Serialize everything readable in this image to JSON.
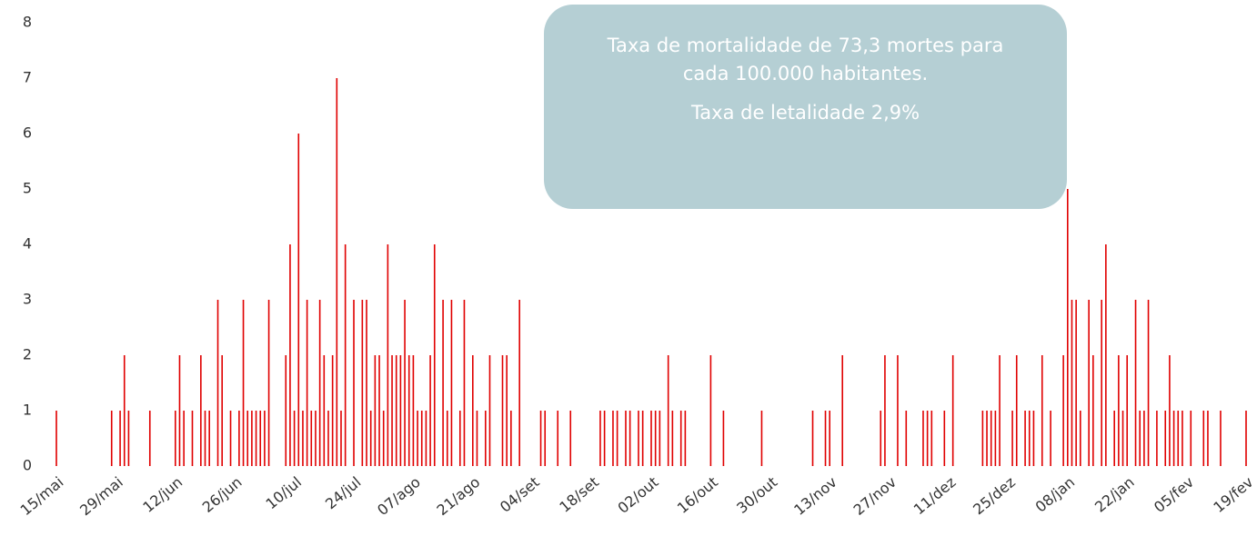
{
  "chart_data": {
    "type": "bar",
    "color": "#e00000",
    "ylim": [
      0,
      8
    ],
    "yticks": [
      0,
      1,
      2,
      3,
      4,
      5,
      6,
      7,
      8
    ],
    "grid": false,
    "annotations": [
      "Taxa de mortalidade de 73,3 mortes para cada 100.000 habitantes.",
      "Taxa de letalidade 2,9%"
    ],
    "categories": [
      "15/mai",
      null,
      null,
      null,
      null,
      null,
      null,
      null,
      null,
      null,
      null,
      null,
      null,
      null,
      "29/mai",
      null,
      null,
      null,
      null,
      null,
      null,
      null,
      null,
      null,
      null,
      null,
      null,
      null,
      "12/jun",
      null,
      null,
      null,
      null,
      null,
      null,
      null,
      null,
      null,
      null,
      null,
      null,
      null,
      "26/jun",
      null,
      null,
      null,
      null,
      null,
      null,
      null,
      null,
      null,
      null,
      null,
      null,
      null,
      "10/jul",
      null,
      null,
      null,
      null,
      null,
      null,
      null,
      null,
      null,
      null,
      null,
      null,
      null,
      "24/jul",
      null,
      null,
      null,
      null,
      null,
      null,
      null,
      null,
      null,
      null,
      null,
      null,
      null,
      "07/ago",
      null,
      null,
      null,
      null,
      null,
      null,
      null,
      null,
      null,
      null,
      null,
      null,
      null,
      "21/ago",
      null,
      null,
      null,
      null,
      null,
      null,
      null,
      null,
      null,
      null,
      null,
      null,
      null,
      "04/set",
      null,
      null,
      null,
      null,
      null,
      null,
      null,
      null,
      null,
      null,
      null,
      null,
      null,
      "18/set",
      null,
      null,
      null,
      null,
      null,
      null,
      null,
      null,
      null,
      null,
      null,
      null,
      null,
      "02/out",
      null,
      null,
      null,
      null,
      null,
      null,
      null,
      null,
      null,
      null,
      null,
      null,
      null,
      "16/out",
      null,
      null,
      null,
      null,
      null,
      null,
      null,
      null,
      null,
      null,
      null,
      null,
      null,
      "30/out",
      null,
      null,
      null,
      null,
      null,
      null,
      null,
      null,
      null,
      null,
      null,
      null,
      null,
      "13/nov",
      null,
      null,
      null,
      null,
      null,
      null,
      null,
      null,
      null,
      null,
      null,
      null,
      null,
      "27/nov",
      null,
      null,
      null,
      null,
      null,
      null,
      null,
      null,
      null,
      null,
      null,
      null,
      null,
      "11/dez",
      null,
      null,
      null,
      null,
      null,
      null,
      null,
      null,
      null,
      null,
      null,
      null,
      null,
      "25/dez",
      null,
      null,
      null,
      null,
      null,
      null,
      null,
      null,
      null,
      null,
      null,
      null,
      null,
      "08/jan",
      null,
      null,
      null,
      null,
      null,
      null,
      null,
      null,
      null,
      null,
      null,
      null,
      null,
      "22/jan",
      null,
      null,
      null,
      null,
      null,
      null,
      null,
      null,
      null,
      null,
      null,
      null,
      null,
      "05/fev",
      null,
      null,
      null,
      null,
      null,
      null,
      null,
      null,
      null,
      null,
      null,
      null,
      null,
      "19/fev"
    ],
    "values": [
      1,
      0,
      0,
      0,
      0,
      0,
      0,
      0,
      0,
      0,
      0,
      0,
      0,
      1,
      0,
      1,
      2,
      1,
      0,
      0,
      0,
      0,
      1,
      0,
      0,
      0,
      0,
      0,
      1,
      2,
      1,
      0,
      1,
      0,
      2,
      1,
      1,
      0,
      3,
      2,
      0,
      1,
      0,
      1,
      3,
      1,
      1,
      1,
      1,
      1,
      3,
      0,
      0,
      0,
      2,
      4,
      1,
      6,
      1,
      3,
      1,
      1,
      3,
      2,
      1,
      2,
      7,
      1,
      4,
      0,
      3,
      0,
      3,
      3,
      1,
      2,
      2,
      1,
      4,
      2,
      2,
      2,
      3,
      2,
      2,
      1,
      1,
      1,
      2,
      4,
      0,
      3,
      1,
      3,
      0,
      1,
      3,
      0,
      2,
      1,
      0,
      1,
      2,
      0,
      0,
      2,
      2,
      1,
      0,
      3,
      0,
      0,
      0,
      0,
      1,
      1,
      0,
      0,
      1,
      0,
      0,
      1,
      0,
      0,
      0,
      0,
      0,
      0,
      1,
      1,
      0,
      1,
      1,
      0,
      1,
      1,
      0,
      1,
      1,
      0,
      1,
      1,
      1,
      0,
      2,
      1,
      0,
      1,
      1,
      0,
      0,
      0,
      0,
      0,
      2,
      0,
      0,
      1,
      0,
      0,
      0,
      0,
      0,
      0,
      0,
      0,
      1,
      0,
      0,
      0,
      0,
      0,
      0,
      0,
      0,
      0,
      0,
      0,
      1,
      0,
      0,
      1,
      1,
      0,
      0,
      2,
      0,
      0,
      0,
      0,
      0,
      0,
      0,
      0,
      1,
      2,
      0,
      0,
      2,
      0,
      1,
      0,
      0,
      0,
      1,
      1,
      1,
      0,
      0,
      1,
      0,
      2,
      0,
      0,
      0,
      0,
      0,
      0,
      1,
      1,
      1,
      1,
      2,
      0,
      0,
      1,
      2,
      0,
      1,
      1,
      1,
      0,
      2,
      0,
      1,
      0,
      0,
      2,
      5,
      3,
      3,
      1,
      0,
      3,
      2,
      0,
      3,
      4,
      0,
      1,
      2,
      1,
      2,
      0,
      3,
      1,
      1,
      3,
      0,
      1,
      0,
      1,
      2,
      1,
      1,
      1,
      0,
      1,
      0,
      0,
      1,
      1,
      0,
      0,
      1,
      0,
      0,
      0,
      0,
      0,
      1
    ]
  }
}
